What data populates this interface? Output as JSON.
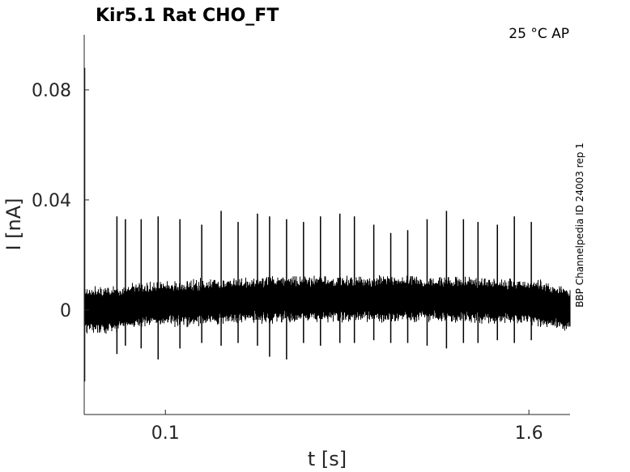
{
  "chart_data": {
    "type": "line",
    "title": "Kir5.1  Rat  CHO_FT",
    "condition_label": "25 °C  AP",
    "side_label": "BBP Channelpedia ID 24003 rep 1",
    "xlabel": "t [s]",
    "ylabel": "I [nA]",
    "xlim": [
      -0.235,
      1.77
    ],
    "ylim": [
      -0.038,
      0.1
    ],
    "xticks": [
      {
        "value": 0.1,
        "label": "0.1"
      },
      {
        "value": 1.6,
        "label": "1.6"
      }
    ],
    "yticks": [
      {
        "value": 0,
        "label": "0"
      },
      {
        "value": 0.04,
        "label": "0.04"
      },
      {
        "value": 0.08,
        "label": "0.08"
      }
    ],
    "grid": false,
    "series": [
      {
        "color": "#000000",
        "baseline": 0.0,
        "noise_amplitude": 0.006,
        "onset_spike": {
          "x": -0.235,
          "max": 0.088,
          "min": -0.026
        },
        "drift": [
          {
            "x": -0.235,
            "y": 0.0
          },
          {
            "x": -0.12,
            "y": 0.0
          },
          {
            "x": 0.0,
            "y": 0.002
          },
          {
            "x": 0.6,
            "y": 0.004
          },
          {
            "x": 1.2,
            "y": 0.004
          },
          {
            "x": 1.6,
            "y": 0.003
          },
          {
            "x": 1.77,
            "y": 0.0
          }
        ],
        "spikes": [
          {
            "x": -0.1,
            "max": 0.034,
            "min": -0.016
          },
          {
            "x": -0.065,
            "max": 0.033,
            "min": -0.013
          },
          {
            "x": 0.0,
            "max": 0.033,
            "min": -0.014
          },
          {
            "x": 0.07,
            "max": 0.034,
            "min": -0.018
          },
          {
            "x": 0.16,
            "max": 0.033,
            "min": -0.014
          },
          {
            "x": 0.25,
            "max": 0.031,
            "min": -0.012
          },
          {
            "x": 0.33,
            "max": 0.036,
            "min": -0.013
          },
          {
            "x": 0.4,
            "max": 0.032,
            "min": -0.012
          },
          {
            "x": 0.48,
            "max": 0.035,
            "min": -0.013
          },
          {
            "x": 0.53,
            "max": 0.034,
            "min": -0.017
          },
          {
            "x": 0.6,
            "max": 0.033,
            "min": -0.018
          },
          {
            "x": 0.67,
            "max": 0.032,
            "min": -0.012
          },
          {
            "x": 0.74,
            "max": 0.034,
            "min": -0.013
          },
          {
            "x": 0.82,
            "max": 0.035,
            "min": -0.012
          },
          {
            "x": 0.88,
            "max": 0.034,
            "min": -0.012
          },
          {
            "x": 0.96,
            "max": 0.031,
            "min": -0.011
          },
          {
            "x": 1.03,
            "max": 0.028,
            "min": -0.012
          },
          {
            "x": 1.1,
            "max": 0.029,
            "min": -0.012
          },
          {
            "x": 1.18,
            "max": 0.033,
            "min": -0.013
          },
          {
            "x": 1.26,
            "max": 0.036,
            "min": -0.014
          },
          {
            "x": 1.33,
            "max": 0.033,
            "min": -0.012
          },
          {
            "x": 1.39,
            "max": 0.032,
            "min": -0.012
          },
          {
            "x": 1.47,
            "max": 0.031,
            "min": -0.011
          },
          {
            "x": 1.54,
            "max": 0.034,
            "min": -0.012
          },
          {
            "x": 1.61,
            "max": 0.032,
            "min": -0.011
          }
        ]
      }
    ]
  }
}
